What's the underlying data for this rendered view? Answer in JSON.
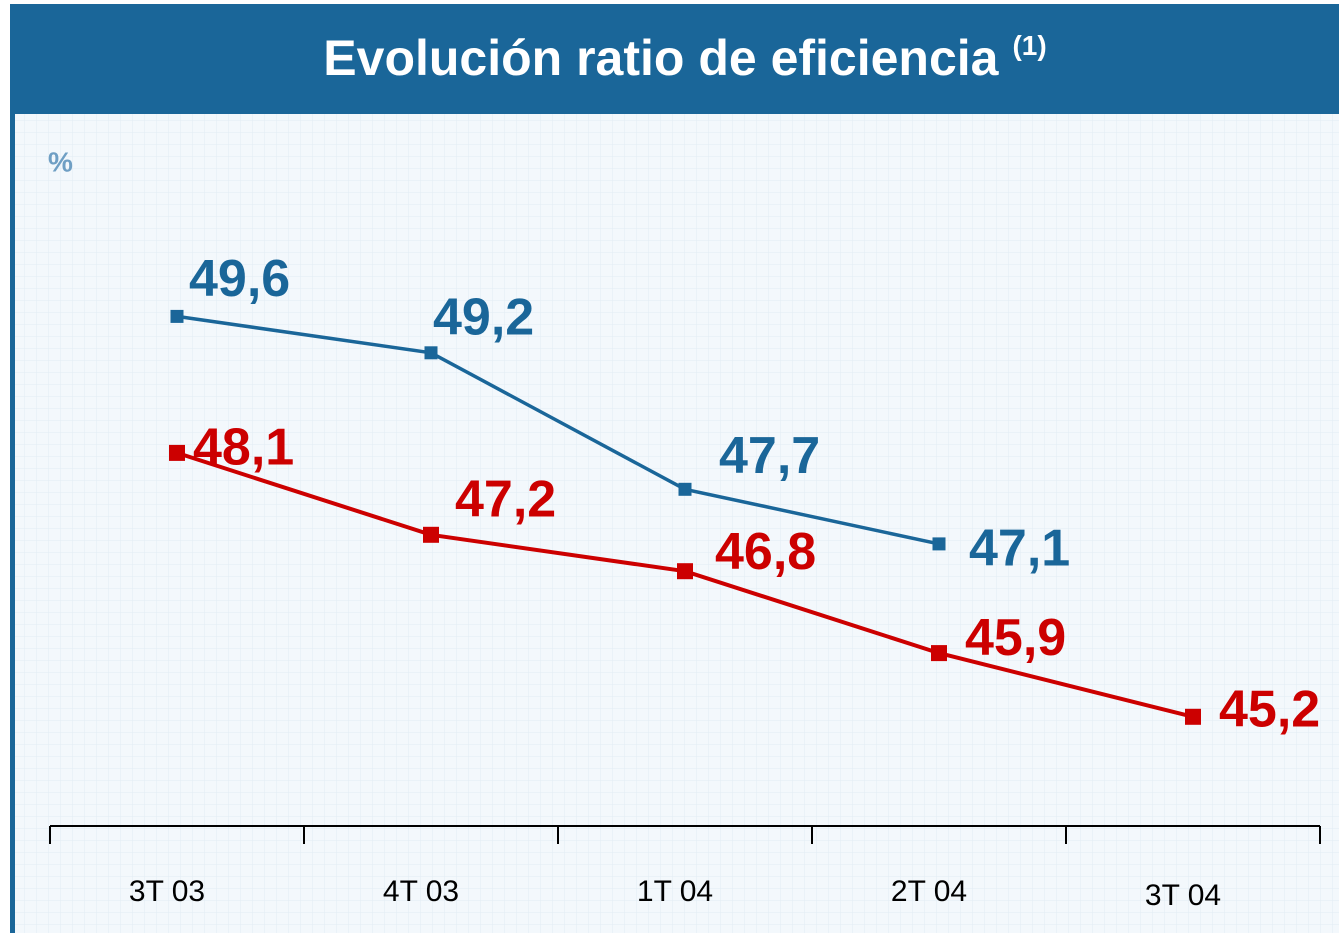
{
  "chart_data": {
    "type": "line",
    "title": "Evolución ratio de eficiencia",
    "title_note": "(1)",
    "ylabel": "%",
    "categories": [
      "3T 03",
      "4T 03",
      "1T 04",
      "2T 04",
      "3T 04"
    ],
    "ylim": [
      44,
      51
    ],
    "series": [
      {
        "color": "#1a6699",
        "values": [
          49.6,
          49.2,
          47.7,
          47.1,
          null
        ],
        "value_labels": [
          "49,6",
          "49,2",
          "47,7",
          "47,1",
          null
        ]
      },
      {
        "color": "#cc0000",
        "values": [
          48.1,
          47.2,
          46.8,
          45.9,
          45.2
        ],
        "value_labels": [
          "48,1",
          "47,2",
          "46,8",
          "45,9",
          "45,2"
        ]
      }
    ],
    "grid": true
  }
}
